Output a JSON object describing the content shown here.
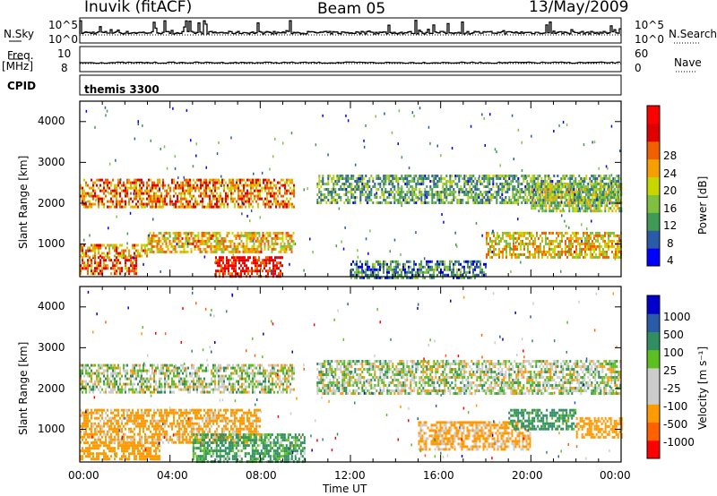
{
  "header": {
    "station": "Inuvik (fitACF)",
    "beam": "Beam 05",
    "date": "13/May/2009"
  },
  "strips": {
    "nsky_label": "N.Sky",
    "nsky_ticks_left": [
      "10^5",
      "10^0"
    ],
    "nsky_ticks_right": [
      "10^5",
      "10^0"
    ],
    "nsearch_label": "N.Search",
    "freq_label_1": "Freq.",
    "freq_label_2": "[MHz]",
    "freq_ticks_left": [
      "10",
      "8"
    ],
    "freq_ticks_right": [
      "60",
      "0"
    ],
    "nave_label": "Nave",
    "cpid_label": "CPID",
    "cpid_value": "themis 3300"
  },
  "colors": {
    "power": [
      "#0000ff",
      "#2a5ba8",
      "#3f9a56",
      "#7fc040",
      "#c8d600",
      "#f4a000",
      "#f06000",
      "#e00000",
      "#ff0000"
    ],
    "velocity": [
      "#ff0000",
      "#ff6000",
      "#ff9a00",
      "#cccccc",
      "#cccccc",
      "#5cc020",
      "#2f8f60",
      "#2a5ba8",
      "#0000cc"
    ]
  },
  "chart_data": [
    {
      "type": "heatmap",
      "panel": "power",
      "xlabel": "",
      "ylabel": "Slant Range [km]",
      "xlim": [
        0,
        24
      ],
      "ylim": [
        200,
        4500
      ],
      "yticks": [
        "1000",
        "2000",
        "3000",
        "4000"
      ],
      "colorbar_label": "Power [dB]",
      "colorbar_ticks": [
        "4",
        "8",
        "12",
        "16",
        "20",
        "24",
        "28"
      ],
      "bands": [
        {
          "t0": 0.0,
          "t1": 2.5,
          "r0": 300,
          "r1": 700,
          "value": 24
        },
        {
          "t0": 0.0,
          "t1": 3.0,
          "r0": 700,
          "r1": 1000,
          "value": 20
        },
        {
          "t0": 0.0,
          "t1": 9.5,
          "r0": 1900,
          "r1": 2600,
          "value": 22
        },
        {
          "t0": 3.0,
          "t1": 9.5,
          "r0": 800,
          "r1": 1300,
          "value": 18
        },
        {
          "t0": 6.0,
          "t1": 9.0,
          "r0": 200,
          "r1": 700,
          "value": 28
        },
        {
          "t0": 10.5,
          "t1": 24.0,
          "r0": 2000,
          "r1": 2700,
          "value": 10
        },
        {
          "t0": 12.0,
          "t1": 18.0,
          "r0": 200,
          "r1": 600,
          "value": 8
        },
        {
          "t0": 18.0,
          "t1": 24.0,
          "r0": 700,
          "r1": 1300,
          "value": 18
        },
        {
          "t0": 20.0,
          "t1": 24.0,
          "r0": 1800,
          "r1": 2500,
          "value": 14
        }
      ]
    },
    {
      "type": "heatmap",
      "panel": "velocity",
      "xlabel": "Time UT",
      "ylabel": "Slant Range [km]",
      "xlim": [
        0,
        24
      ],
      "ylim": [
        200,
        4500
      ],
      "xticks": [
        "00:00",
        "04:00",
        "08:00",
        "12:00",
        "16:00",
        "20:00",
        "00:00"
      ],
      "yticks": [
        "1000",
        "2000",
        "3000",
        "4000"
      ],
      "colorbar_label": "Velocity [m s⁻¹]",
      "colorbar_ticks": [
        "1000",
        "500",
        "100",
        "25",
        "-25",
        "-100",
        "-500",
        "-1000"
      ],
      "bands": [
        {
          "t0": 0.0,
          "t1": 3.5,
          "r0": 300,
          "r1": 700,
          "value": -300
        },
        {
          "t0": 0.0,
          "t1": 8.0,
          "r0": 700,
          "r1": 1500,
          "value": -200
        },
        {
          "t0": 0.0,
          "t1": 9.5,
          "r0": 1900,
          "r1": 2600,
          "value": 0
        },
        {
          "t0": 5.0,
          "t1": 10.0,
          "r0": 200,
          "r1": 900,
          "value": 150
        },
        {
          "t0": 10.5,
          "t1": 24.0,
          "r0": 1900,
          "r1": 2700,
          "value": 0
        },
        {
          "t0": 15.0,
          "t1": 20.0,
          "r0": 500,
          "r1": 1200,
          "value": -150
        },
        {
          "t0": 19.0,
          "t1": 22.0,
          "r0": 1000,
          "r1": 1500,
          "value": 200
        },
        {
          "t0": 22.0,
          "t1": 24.0,
          "r0": 800,
          "r1": 1300,
          "value": -300
        }
      ]
    }
  ]
}
